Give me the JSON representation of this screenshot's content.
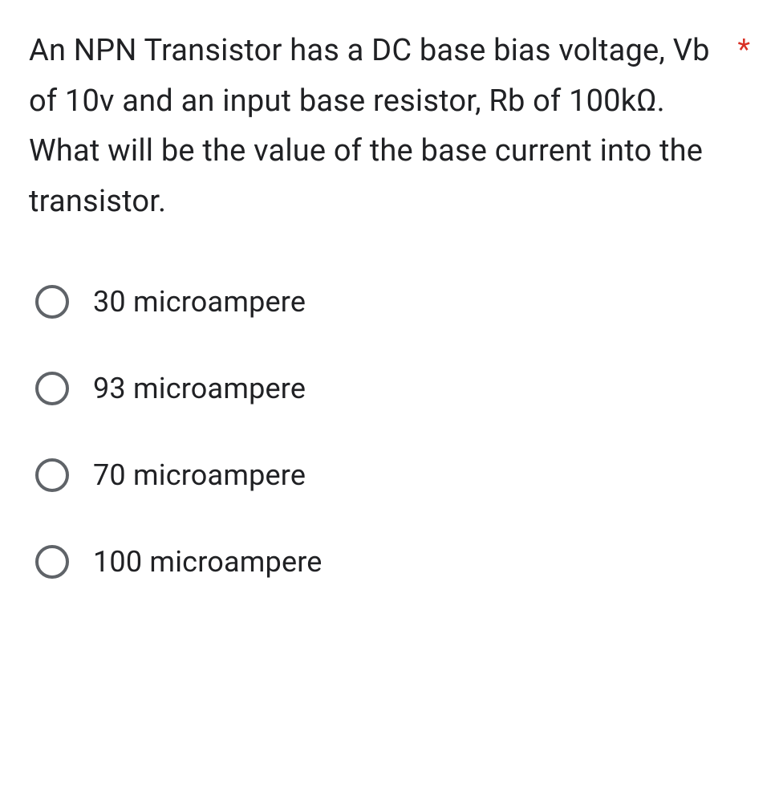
{
  "question": {
    "text": "An NPN Transistor has a DC base bias voltage, Vb of 10v and an input base resistor, Rb of 100kΩ. What will be the value of the base current into the transistor.",
    "required_mark": "*",
    "required_color": "#d93025",
    "text_color": "#202124",
    "font_size": 38
  },
  "options": [
    {
      "label": "30 microampere"
    },
    {
      "label": "93 microampere"
    },
    {
      "label": "70 microampere"
    },
    {
      "label": "100 microampere"
    }
  ],
  "styles": {
    "radio_border_color": "#5f6368",
    "background_color": "#ffffff",
    "option_font_size": 36
  }
}
